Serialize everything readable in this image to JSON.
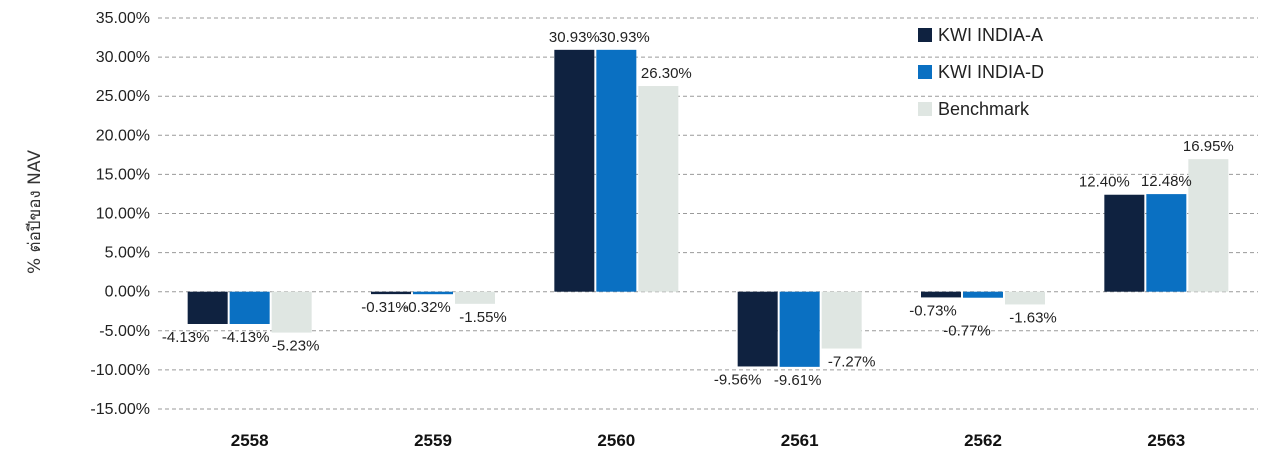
{
  "chart_data": {
    "type": "bar",
    "ylabel": "% ต่อปีของ NAV",
    "categories": [
      "2558",
      "2559",
      "2560",
      "2561",
      "2562",
      "2563"
    ],
    "series": [
      {
        "name": "KWI INDIA-A",
        "color": "#0f2240",
        "values": [
          -4.13,
          -0.31,
          30.93,
          -9.56,
          -0.73,
          12.4
        ],
        "labels": [
          "-4.13%",
          "-0.31%",
          "30.93%",
          "-9.56%",
          "-0.73%",
          "12.40%"
        ]
      },
      {
        "name": "KWI INDIA-D",
        "color": "#0a70c2",
        "values": [
          -4.13,
          -0.32,
          30.93,
          -9.61,
          -0.77,
          12.48
        ],
        "labels": [
          "-4.13%",
          "-0.32%",
          "30.93%",
          "-9.61%",
          "-0.77%",
          "12.48%"
        ]
      },
      {
        "name": "Benchmark",
        "color": "#dfe6e2",
        "values": [
          -5.23,
          -1.55,
          26.3,
          -7.27,
          -1.63,
          16.95
        ],
        "labels": [
          "-5.23%",
          "-1.55%",
          "26.30%",
          "-7.27%",
          "-1.63%",
          "16.95%"
        ]
      }
    ],
    "ylim": [
      -15,
      35
    ],
    "yticks": [
      "35.00%",
      "30.00%",
      "25.00%",
      "20.00%",
      "15.00%",
      "10.00%",
      "5.00%",
      "0.00%",
      "-5.00%",
      "-10.00%",
      "-15.00%"
    ],
    "grid": true,
    "legend_position": "top-right"
  }
}
